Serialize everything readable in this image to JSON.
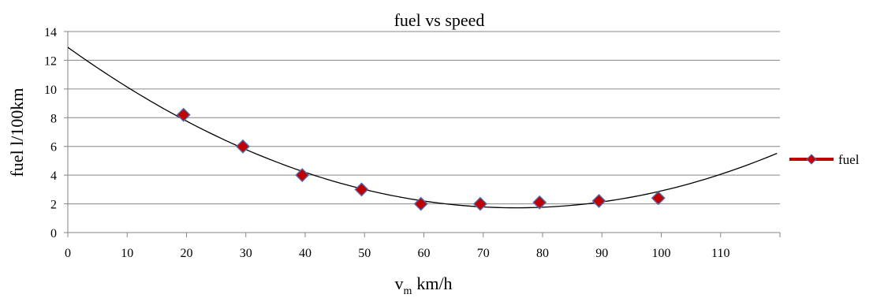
{
  "chart_data": {
    "type": "scatter",
    "title": "fuel vs speed",
    "xlabel": "km/h",
    "xlabel_prefix": "v",
    "xlabel_subscript": "m",
    "ylabel": "fuel l/100km",
    "xlim": [
      0,
      120
    ],
    "ylim": [
      0,
      14
    ],
    "xticks": [
      0,
      10,
      20,
      30,
      40,
      50,
      60,
      70,
      80,
      90,
      100,
      110
    ],
    "yticks": [
      0,
      2,
      4,
      6,
      8,
      10,
      12,
      14
    ],
    "grid": true,
    "legend_position": "right",
    "series": [
      {
        "name": "fuel",
        "marker": "diamond",
        "color": "#c00000",
        "edge_color": "#4f6db0",
        "x": [
          19.5,
          29.5,
          39.5,
          49.5,
          59.5,
          69.5,
          79.5,
          89.5,
          99.5
        ],
        "y": [
          8.2,
          6.0,
          4.0,
          3.0,
          2.0,
          2.0,
          2.1,
          2.2,
          2.4
        ]
      }
    ],
    "trendline": {
      "type": "polynomial",
      "order": 2,
      "color": "#000000",
      "coefficients": [
        12.9,
        -0.296,
        0.00196
      ],
      "x_range": [
        0,
        119.5
      ]
    }
  },
  "colors": {
    "grid": "#868686",
    "axis": "#868686",
    "marker_fill": "#c00000",
    "marker_edge": "#4f6db0",
    "legend_line": "#c00000"
  }
}
